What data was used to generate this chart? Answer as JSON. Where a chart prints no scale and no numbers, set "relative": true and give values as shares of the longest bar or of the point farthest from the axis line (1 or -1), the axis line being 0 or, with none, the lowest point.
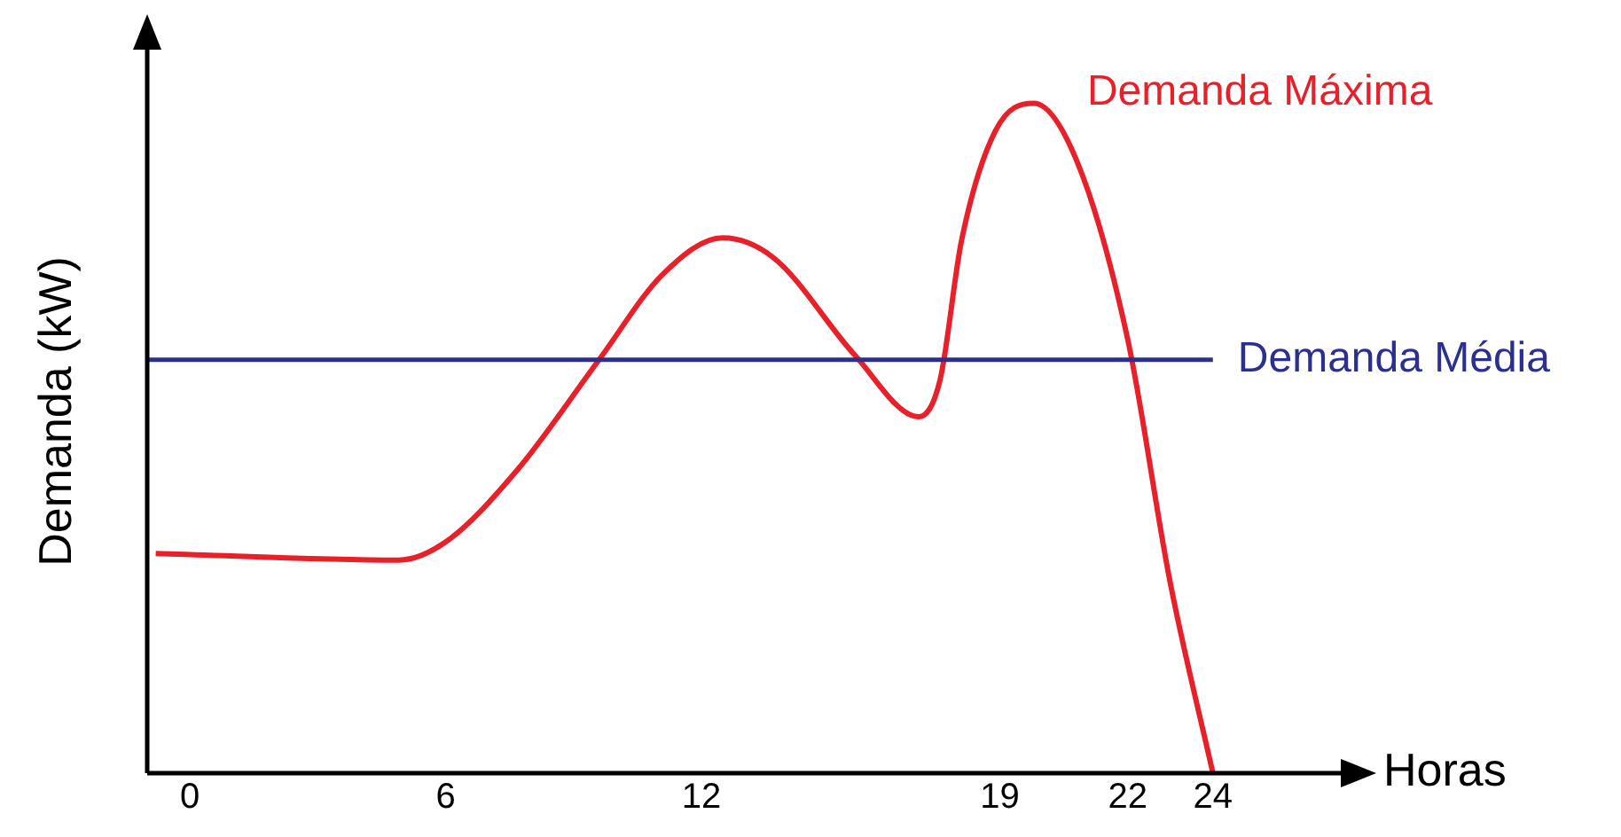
{
  "chart_data": {
    "type": "line",
    "relative": true,
    "xlabel": "Horas",
    "ylabel": "Demanda (kW)",
    "xlim": [
      -1,
      27
    ],
    "xticks": [
      0,
      6,
      12,
      19,
      22,
      24
    ],
    "grid": false,
    "legend": false,
    "marker": "none",
    "line_style": "solid",
    "x": [
      -0.8,
      4.9,
      6,
      7.7,
      9.6,
      11.1,
      12.5,
      13.7,
      15.6,
      17.1,
      17.6,
      18.1,
      18.9,
      19.8,
      20.8,
      22,
      23,
      24
    ],
    "series": [
      {
        "name": "Demanda Máxima",
        "color": "#e8202a",
        "values": [
          0.328,
          0.318,
          0.345,
          0.454,
          0.617,
          0.745,
          0.799,
          0.769,
          0.624,
          0.532,
          0.587,
          0.794,
          0.959,
          1.0,
          0.915,
          0.648,
          0.284,
          0
        ]
      }
    ],
    "ref_lines": [
      {
        "axis": "y",
        "value": 0.617,
        "label": "Demanda Média",
        "color": "#2b2f8f",
        "line_style": "solid"
      }
    ]
  }
}
